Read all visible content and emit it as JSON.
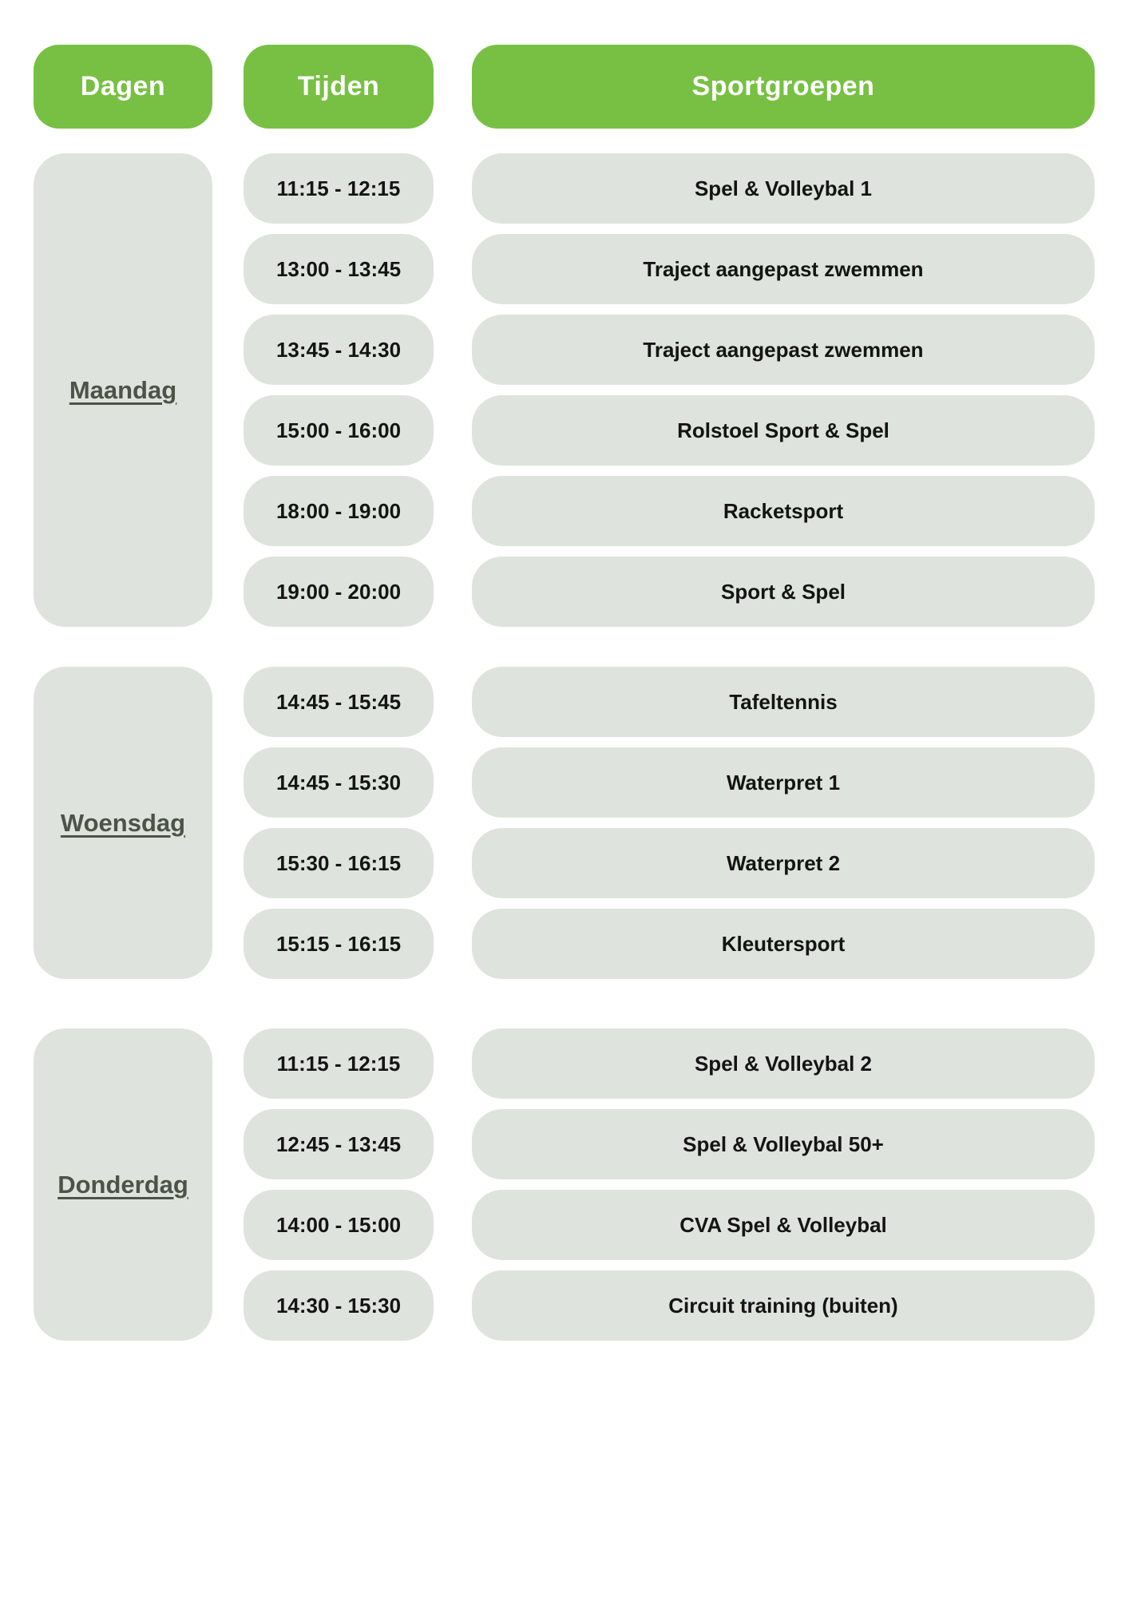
{
  "colors": {
    "header_green": "#77c043",
    "pill_gray": "#dfe3dd",
    "day_text": "#4b5446",
    "row_text": "#141414",
    "background": "#ffffff"
  },
  "header": {
    "columns": [
      {
        "label": "Dagen"
      },
      {
        "label": "Tijden"
      },
      {
        "label": "Sportgroepen"
      }
    ]
  },
  "sections": [
    {
      "day": "Maandag",
      "rows": [
        {
          "time": "11:15 - 12:15",
          "group": "Spel & Volleybal 1"
        },
        {
          "time": "13:00 - 13:45",
          "group": "Traject aangepast zwemmen"
        },
        {
          "time": "13:45 - 14:30",
          "group": "Traject aangepast zwemmen"
        },
        {
          "time": "15:00 - 16:00",
          "group": "Rolstoel Sport & Spel"
        },
        {
          "time": "18:00 - 19:00",
          "group": "Racketsport"
        },
        {
          "time": "19:00 - 20:00",
          "group": "Sport & Spel"
        }
      ]
    },
    {
      "day": "Woensdag",
      "rows": [
        {
          "time": "14:45 - 15:45",
          "group": "Tafeltennis"
        },
        {
          "time": "14:45 - 15:30",
          "group": "Waterpret 1"
        },
        {
          "time": "15:30 - 16:15",
          "group": "Waterpret 2"
        },
        {
          "time": "15:15 - 16:15",
          "group": "Kleutersport"
        }
      ]
    },
    {
      "day": "Donderdag",
      "rows": [
        {
          "time": "11:15 - 12:15",
          "group": "Spel & Volleybal 2"
        },
        {
          "time": "12:45 - 13:45",
          "group": "Spel & Volleybal 50+"
        },
        {
          "time": "14:00 - 15:00",
          "group": "CVA Spel & Volleybal"
        },
        {
          "time": "14:30 - 15:30",
          "group": "Circuit training (buiten)"
        }
      ]
    }
  ]
}
